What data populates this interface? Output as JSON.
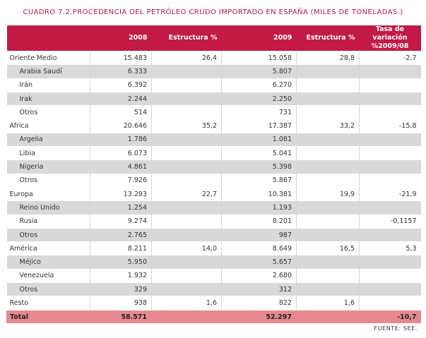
{
  "title": "CUADRO 7.2.PROCEDENCIA DEL PETRÓLEO CRUDO IMPORTADO EN ESPAÑA (MILES DE TONELADAS.)",
  "headers": [
    "",
    "2008",
    "Estructura %",
    "2009",
    "Estructura %",
    "Tasa de variación %2009/08"
  ],
  "rows": [
    {
      "kind": "group",
      "cells": [
        "Oriente Medio",
        "15.483",
        "26,4",
        "15.058",
        "28,8",
        "-2,7"
      ]
    },
    {
      "kind": "sub",
      "cells": [
        "Arabia Saudí",
        "6.333",
        "",
        "5.807",
        "",
        ""
      ]
    },
    {
      "kind": "sub",
      "cells": [
        "Irán",
        "6.392",
        "",
        "6.270",
        "",
        ""
      ]
    },
    {
      "kind": "sub",
      "cells": [
        "Irak",
        "2.244",
        "",
        "2.250",
        "",
        ""
      ]
    },
    {
      "kind": "sub",
      "cells": [
        "Otros",
        "514",
        "",
        "731",
        "",
        ""
      ]
    },
    {
      "kind": "group",
      "cells": [
        "Africa",
        "20.646",
        "35,2",
        "17.387",
        "33,2",
        "-15,8"
      ]
    },
    {
      "kind": "sub",
      "cells": [
        "Argelia",
        "1.786",
        "",
        "1.081",
        "",
        ""
      ]
    },
    {
      "kind": "sub",
      "cells": [
        "Libia",
        "6.073",
        "",
        "5.041",
        "",
        ""
      ]
    },
    {
      "kind": "sub",
      "cells": [
        "Nigeria",
        "4.861",
        "",
        "5.398",
        "",
        ""
      ]
    },
    {
      "kind": "sub",
      "cells": [
        "Otros",
        "7.926",
        "",
        "5.867",
        "",
        ""
      ]
    },
    {
      "kind": "group",
      "cells": [
        "Europa",
        "13.293",
        "22,7",
        "10.381",
        "19,9",
        "-21,9"
      ]
    },
    {
      "kind": "sub",
      "cells": [
        "Reino Unido",
        "1.254",
        "",
        "1.193",
        "",
        ""
      ]
    },
    {
      "kind": "sub",
      "cells": [
        "Rusia",
        "9.274",
        "",
        "8.201",
        "",
        "-0,1157"
      ]
    },
    {
      "kind": "sub",
      "cells": [
        "Otros",
        "2.765",
        "",
        "987",
        "",
        ""
      ]
    },
    {
      "kind": "group",
      "cells": [
        "América",
        "8.211",
        "14,0",
        "8.649",
        "16,5",
        "5,3"
      ]
    },
    {
      "kind": "sub",
      "cells": [
        "Méjico",
        "5.950",
        "",
        "5.657",
        "",
        ""
      ]
    },
    {
      "kind": "sub",
      "cells": [
        "Venezuela",
        "1.932",
        "",
        "2.680",
        "",
        ""
      ]
    },
    {
      "kind": "sub",
      "cells": [
        "Otros",
        "329",
        "",
        "312",
        "",
        ""
      ]
    },
    {
      "kind": "group",
      "cells": [
        "Resto",
        "938",
        "1,6",
        "822",
        "1,6",
        ""
      ]
    }
  ],
  "total": [
    "Total",
    "58.571",
    "",
    "52.297",
    "",
    "-10,7"
  ],
  "source": "FUENTE: SEE.",
  "colors": {
    "accent": "#c21a45",
    "title": "#b5183a",
    "total_bg": "#e6898f",
    "stripe": "#d9d9dc"
  }
}
